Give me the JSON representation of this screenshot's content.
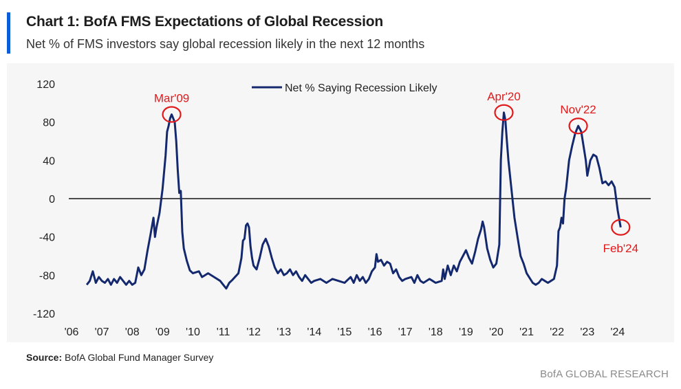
{
  "header": {
    "title": "Chart 1: BofA FMS Expectations of Global Recession",
    "subtitle": "Net % of FMS investors say global recession likely in the next 12 months"
  },
  "footer": {
    "source_label": "Source:",
    "source_text": "BofA Global Fund Manager Survey",
    "brand": "BofA GLOBAL RESEARCH"
  },
  "colors": {
    "line": "#14286e",
    "annotation": "#e0191b",
    "accent": "#0b5fd6",
    "zero_line": "#111111"
  },
  "chart_data": {
    "type": "line",
    "xlabel": "",
    "ylabel": "",
    "ylim": [
      -120,
      120
    ],
    "xlim": [
      2006.0,
      2025.0
    ],
    "y_ticks": [
      120,
      80,
      40,
      0,
      -40,
      -80,
      -120
    ],
    "x_ticks": [
      "'06",
      "'07",
      "'08",
      "'09",
      "'10",
      "'11",
      "'12",
      "'13",
      "'14",
      "'15",
      "'16",
      "'17",
      "'18",
      "'19",
      "'20",
      "'21",
      "'22",
      "'23",
      "'24"
    ],
    "grid": false,
    "legend_position": "top-center",
    "series": [
      {
        "name": "Net % Saying Recession Likely",
        "points": [
          [
            2006.5,
            -90
          ],
          [
            2006.6,
            -86
          ],
          [
            2006.7,
            -76
          ],
          [
            2006.8,
            -88
          ],
          [
            2006.9,
            -82
          ],
          [
            2007.0,
            -86
          ],
          [
            2007.1,
            -88
          ],
          [
            2007.2,
            -84
          ],
          [
            2007.3,
            -90
          ],
          [
            2007.4,
            -84
          ],
          [
            2007.5,
            -88
          ],
          [
            2007.6,
            -82
          ],
          [
            2007.7,
            -86
          ],
          [
            2007.8,
            -90
          ],
          [
            2007.9,
            -86
          ],
          [
            2008.0,
            -90
          ],
          [
            2008.1,
            -88
          ],
          [
            2008.2,
            -72
          ],
          [
            2008.3,
            -80
          ],
          [
            2008.4,
            -74
          ],
          [
            2008.5,
            -55
          ],
          [
            2008.6,
            -38
          ],
          [
            2008.7,
            -20
          ],
          [
            2008.75,
            -40
          ],
          [
            2008.8,
            -30
          ],
          [
            2008.9,
            -15
          ],
          [
            2009.0,
            10
          ],
          [
            2009.1,
            45
          ],
          [
            2009.15,
            70
          ],
          [
            2009.2,
            76
          ],
          [
            2009.25,
            84
          ],
          [
            2009.3,
            88
          ],
          [
            2009.4,
            80
          ],
          [
            2009.45,
            60
          ],
          [
            2009.5,
            30
          ],
          [
            2009.55,
            6
          ],
          [
            2009.6,
            8
          ],
          [
            2009.65,
            -35
          ],
          [
            2009.7,
            -52
          ],
          [
            2009.8,
            -65
          ],
          [
            2009.9,
            -75
          ],
          [
            2010.0,
            -78
          ],
          [
            2010.2,
            -76
          ],
          [
            2010.3,
            -82
          ],
          [
            2010.5,
            -78
          ],
          [
            2010.7,
            -82
          ],
          [
            2010.9,
            -86
          ],
          [
            2011.0,
            -90
          ],
          [
            2011.1,
            -94
          ],
          [
            2011.2,
            -88
          ],
          [
            2011.3,
            -85
          ],
          [
            2011.5,
            -78
          ],
          [
            2011.6,
            -62
          ],
          [
            2011.65,
            -44
          ],
          [
            2011.7,
            -42
          ],
          [
            2011.75,
            -28
          ],
          [
            2011.8,
            -26
          ],
          [
            2011.85,
            -30
          ],
          [
            2011.9,
            -50
          ],
          [
            2011.95,
            -62
          ],
          [
            2012.0,
            -70
          ],
          [
            2012.1,
            -74
          ],
          [
            2012.2,
            -62
          ],
          [
            2012.3,
            -48
          ],
          [
            2012.4,
            -42
          ],
          [
            2012.5,
            -50
          ],
          [
            2012.6,
            -62
          ],
          [
            2012.7,
            -72
          ],
          [
            2012.8,
            -78
          ],
          [
            2012.9,
            -74
          ],
          [
            2013.0,
            -80
          ],
          [
            2013.1,
            -78
          ],
          [
            2013.2,
            -74
          ],
          [
            2013.3,
            -80
          ],
          [
            2013.4,
            -76
          ],
          [
            2013.5,
            -82
          ],
          [
            2013.6,
            -86
          ],
          [
            2013.7,
            -80
          ],
          [
            2013.8,
            -84
          ],
          [
            2013.9,
            -88
          ],
          [
            2014.0,
            -86
          ],
          [
            2014.2,
            -84
          ],
          [
            2014.4,
            -88
          ],
          [
            2014.6,
            -84
          ],
          [
            2014.8,
            -86
          ],
          [
            2015.0,
            -88
          ],
          [
            2015.2,
            -82
          ],
          [
            2015.3,
            -88
          ],
          [
            2015.4,
            -80
          ],
          [
            2015.5,
            -86
          ],
          [
            2015.6,
            -82
          ],
          [
            2015.7,
            -88
          ],
          [
            2015.8,
            -84
          ],
          [
            2015.9,
            -76
          ],
          [
            2016.0,
            -72
          ],
          [
            2016.05,
            -58
          ],
          [
            2016.1,
            -66
          ],
          [
            2016.2,
            -64
          ],
          [
            2016.3,
            -70
          ],
          [
            2016.4,
            -66
          ],
          [
            2016.5,
            -68
          ],
          [
            2016.6,
            -78
          ],
          [
            2016.7,
            -74
          ],
          [
            2016.8,
            -82
          ],
          [
            2016.9,
            -86
          ],
          [
            2017.0,
            -84
          ],
          [
            2017.2,
            -82
          ],
          [
            2017.3,
            -88
          ],
          [
            2017.4,
            -80
          ],
          [
            2017.5,
            -86
          ],
          [
            2017.6,
            -88
          ],
          [
            2017.8,
            -84
          ],
          [
            2017.9,
            -86
          ],
          [
            2018.0,
            -88
          ],
          [
            2018.2,
            -86
          ],
          [
            2018.25,
            -74
          ],
          [
            2018.3,
            -84
          ],
          [
            2018.4,
            -70
          ],
          [
            2018.5,
            -80
          ],
          [
            2018.6,
            -70
          ],
          [
            2018.7,
            -76
          ],
          [
            2018.8,
            -66
          ],
          [
            2018.9,
            -60
          ],
          [
            2019.0,
            -54
          ],
          [
            2019.1,
            -62
          ],
          [
            2019.2,
            -68
          ],
          [
            2019.3,
            -56
          ],
          [
            2019.4,
            -42
          ],
          [
            2019.5,
            -32
          ],
          [
            2019.55,
            -24
          ],
          [
            2019.6,
            -30
          ],
          [
            2019.7,
            -52
          ],
          [
            2019.8,
            -64
          ],
          [
            2019.9,
            -72
          ],
          [
            2020.0,
            -68
          ],
          [
            2020.1,
            -48
          ],
          [
            2020.15,
            40
          ],
          [
            2020.2,
            70
          ],
          [
            2020.25,
            90
          ],
          [
            2020.3,
            82
          ],
          [
            2020.35,
            60
          ],
          [
            2020.4,
            40
          ],
          [
            2020.5,
            10
          ],
          [
            2020.6,
            -20
          ],
          [
            2020.7,
            -40
          ],
          [
            2020.8,
            -60
          ],
          [
            2020.9,
            -68
          ],
          [
            2021.0,
            -78
          ],
          [
            2021.2,
            -88
          ],
          [
            2021.3,
            -90
          ],
          [
            2021.4,
            -88
          ],
          [
            2021.5,
            -84
          ],
          [
            2021.6,
            -86
          ],
          [
            2021.7,
            -88
          ],
          [
            2021.8,
            -86
          ],
          [
            2021.9,
            -84
          ],
          [
            2022.0,
            -70
          ],
          [
            2022.05,
            -34
          ],
          [
            2022.1,
            -30
          ],
          [
            2022.15,
            -20
          ],
          [
            2022.2,
            -26
          ],
          [
            2022.25,
            0
          ],
          [
            2022.3,
            10
          ],
          [
            2022.4,
            40
          ],
          [
            2022.5,
            55
          ],
          [
            2022.6,
            68
          ],
          [
            2022.7,
            76
          ],
          [
            2022.8,
            70
          ],
          [
            2022.9,
            50
          ],
          [
            2022.95,
            40
          ],
          [
            2023.0,
            24
          ],
          [
            2023.1,
            40
          ],
          [
            2023.2,
            46
          ],
          [
            2023.3,
            44
          ],
          [
            2023.4,
            32
          ],
          [
            2023.5,
            16
          ],
          [
            2023.6,
            18
          ],
          [
            2023.7,
            14
          ],
          [
            2023.8,
            18
          ],
          [
            2023.9,
            12
          ],
          [
            2024.0,
            -12
          ],
          [
            2024.1,
            -30
          ]
        ]
      }
    ],
    "annotations": [
      {
        "label": "Mar'09",
        "x": 2009.3,
        "y": 88
      },
      {
        "label": "Apr'20",
        "x": 2020.25,
        "y": 90
      },
      {
        "label": "Nov'22",
        "x": 2022.7,
        "y": 76
      },
      {
        "label": "Feb'24",
        "x": 2024.1,
        "y": -30
      }
    ]
  }
}
